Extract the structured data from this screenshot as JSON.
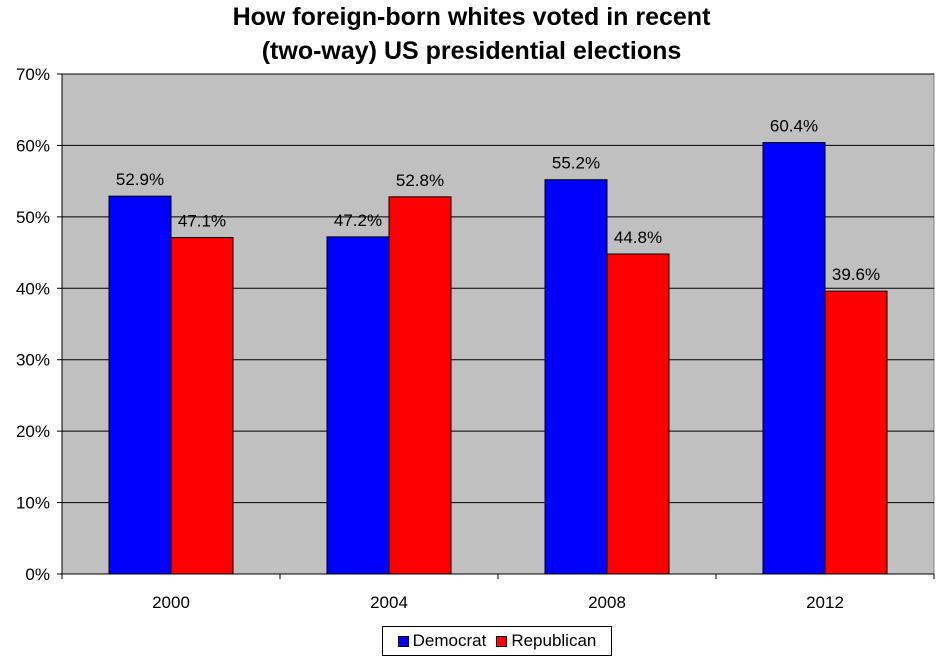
{
  "chart_data": {
    "type": "bar",
    "title": [
      "How foreign-born whites voted in recent",
      "(two-way) US presidential elections"
    ],
    "xlabel": "",
    "ylabel": "",
    "categories": [
      "2000",
      "2004",
      "2008",
      "2012"
    ],
    "series": [
      {
        "name": "Democrat",
        "color": "#0000ff",
        "values": [
          52.9,
          47.2,
          55.2,
          60.4
        ],
        "labels": [
          "52.9%",
          "47.2%",
          "55.2%",
          "60.4%"
        ]
      },
      {
        "name": "Republican",
        "color": "#ff0000",
        "values": [
          47.1,
          52.8,
          44.8,
          39.6
        ],
        "labels": [
          "47.1%",
          "52.8%",
          "44.8%",
          "39.6%"
        ]
      }
    ],
    "ylim": [
      0,
      70
    ],
    "yticks": [
      0,
      10,
      20,
      30,
      40,
      50,
      60,
      70
    ],
    "ytick_labels": [
      "0%",
      "10%",
      "20%",
      "30%",
      "40%",
      "50%",
      "60%",
      "70%"
    ],
    "grid": true,
    "plot_background": "#c0c0c0",
    "legend_position": "bottom"
  }
}
